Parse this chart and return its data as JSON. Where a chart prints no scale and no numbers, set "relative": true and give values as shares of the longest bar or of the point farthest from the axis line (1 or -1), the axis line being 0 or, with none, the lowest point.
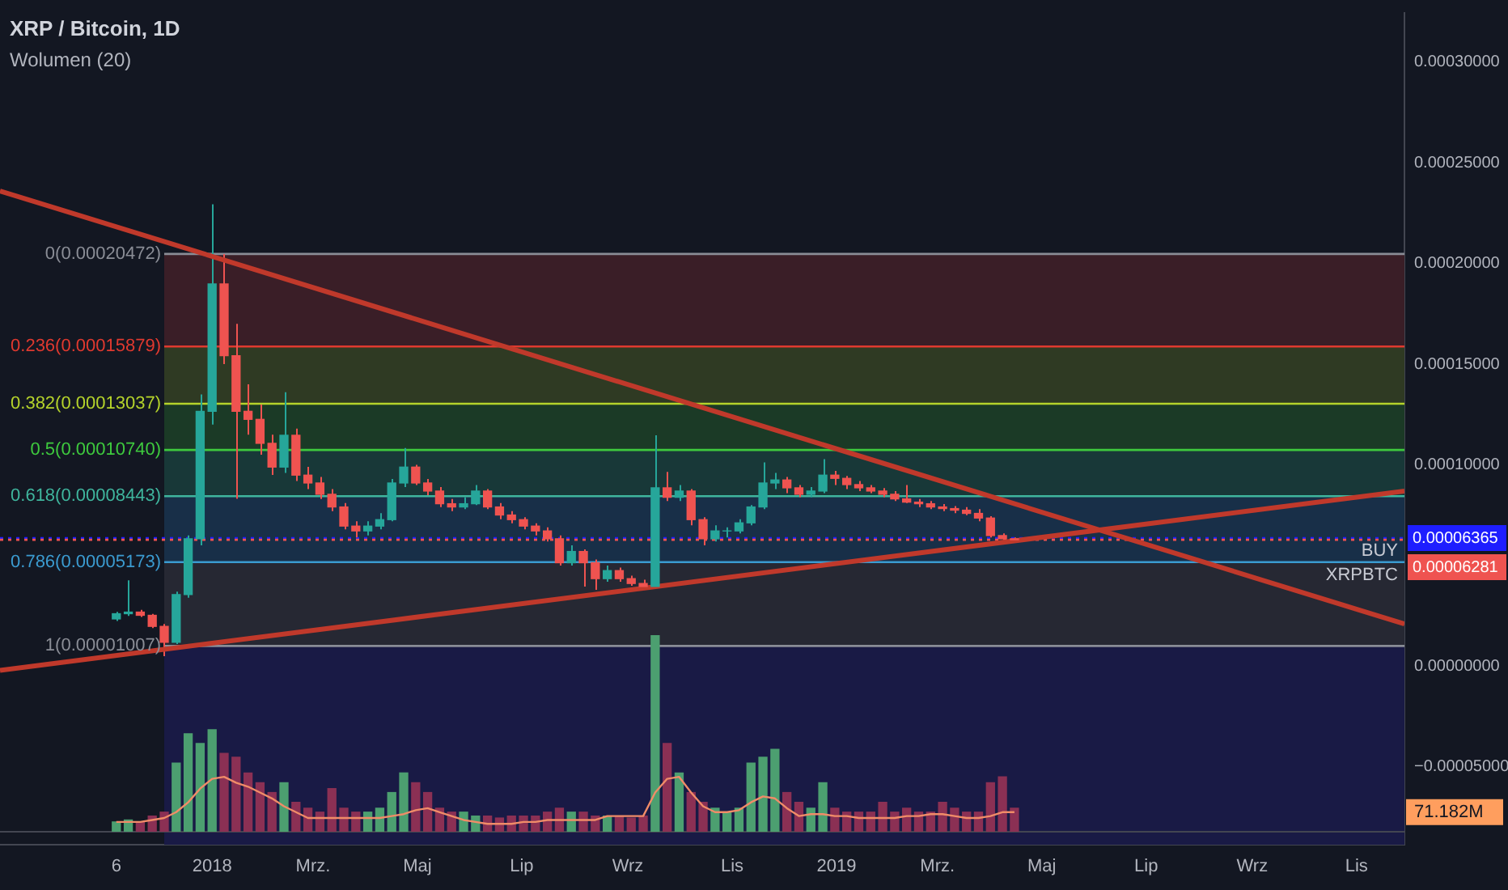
{
  "chart_data": [
    {
      "type": "candlestick",
      "title": "XRP / Bitcoin, 1D",
      "subtitle": "Wolumen (20)",
      "marker": "none",
      "xlim": [
        "2017-08-30",
        "2019-11-29"
      ],
      "xticks": [
        {
          "value": "2017-11-06",
          "label": "6"
        },
        {
          "value": "2018-01-01",
          "label": "2018"
        },
        {
          "value": "2018-03-01",
          "label": "Mrz."
        },
        {
          "value": "2018-05-01",
          "label": "Maj"
        },
        {
          "value": "2018-07-01",
          "label": "Lip"
        },
        {
          "value": "2018-09-01",
          "label": "Wrz"
        },
        {
          "value": "2018-11-01",
          "label": "Lis"
        },
        {
          "value": "2019-01-01",
          "label": "2019"
        },
        {
          "value": "2019-03-01",
          "label": "Mrz."
        },
        {
          "value": "2019-05-01",
          "label": "Maj"
        },
        {
          "value": "2019-07-01",
          "label": "Lip"
        },
        {
          "value": "2019-09-01",
          "label": "Wrz"
        },
        {
          "value": "2019-11-01",
          "label": "Lis"
        }
      ],
      "ylim": [
        -8.86e-05,
        0.0003244
      ],
      "yticks": [
        {
          "value": -5e-05,
          "label": "−0.00005000"
        },
        {
          "value": 0,
          "label": "0.00000000"
        },
        {
          "value": 0.0001,
          "label": "0.00010000"
        },
        {
          "value": 0.00015,
          "label": "0.00015000"
        },
        {
          "value": 0.0002,
          "label": "0.00020000"
        },
        {
          "value": 0.00025,
          "label": "0.00025000"
        },
        {
          "value": 0.0003,
          "label": "0.00030000"
        }
      ],
      "bands": [
        {
          "axis": "y",
          "from": 0.00015879,
          "to": 0.00020472,
          "color": "#3a1e27"
        },
        {
          "axis": "y",
          "from": 0.00013037,
          "to": 0.00015879,
          "color": "#2f3a23"
        },
        {
          "axis": "y",
          "from": 0.0001074,
          "to": 0.00013037,
          "color": "#1b3a26"
        },
        {
          "axis": "y",
          "from": 8.443e-05,
          "to": 0.0001074,
          "color": "#183838"
        },
        {
          "axis": "y",
          "from": 5.173e-05,
          "to": 8.443e-05,
          "color": "#182f48"
        },
        {
          "axis": "y",
          "from": 1.007e-05,
          "to": 5.173e-05,
          "color": "#262833"
        },
        {
          "axis": "y",
          "from": -8.86e-05,
          "to": 1.007e-05,
          "color": "#191a45"
        }
      ],
      "ref_lines": [
        {
          "axis": "y",
          "value": 0.00020472,
          "label": "0(0.00020472)",
          "color": "#8a8d96",
          "line_style": "solid"
        },
        {
          "axis": "y",
          "value": 0.00015879,
          "label": "0.236(0.00015879)",
          "color": "#e0392f",
          "line_style": "solid"
        },
        {
          "axis": "y",
          "value": 0.00013037,
          "label": "0.382(0.00013037)",
          "color": "#b5d32b",
          "line_style": "solid"
        },
        {
          "axis": "y",
          "value": 0.0001074,
          "label": "0.5(0.00010740)",
          "color": "#3ec93e",
          "line_style": "solid"
        },
        {
          "axis": "y",
          "value": 8.443e-05,
          "label": "0.618(0.00008443)",
          "color": "#3fb59d",
          "line_style": "solid"
        },
        {
          "axis": "y",
          "value": 5.173e-05,
          "label": "0.786(0.00005173)",
          "color": "#3b9bd0",
          "line_style": "solid"
        },
        {
          "axis": "y",
          "value": 1.007e-05,
          "label": "1(0.00001007)",
          "color": "#8a8d96",
          "line_style": "solid"
        },
        {
          "axis": "y",
          "value": 6.365e-05,
          "label": "0.00006365",
          "color": "#1e1eff",
          "line_style": "dotted"
        },
        {
          "axis": "y",
          "value": 6.281e-05,
          "label": "0.00006281",
          "color": "#ef5350",
          "line_style": "dotted"
        }
      ],
      "annotations": [
        {
          "text": "BUY",
          "y": 6.365e-05
        },
        {
          "text": "XRPBTC",
          "y": 6.281e-05
        }
      ],
      "series": [
        {
          "x": [
            "2017-11-06",
            "2017-11-13",
            "2017-11-20",
            "2017-11-27",
            "2017-12-04",
            "2017-12-11",
            "2017-12-18",
            "2017-12-25",
            "2018-01-01",
            "2018-01-08",
            "2018-01-15",
            "2018-01-22",
            "2018-01-29",
            "2018-02-05",
            "2018-02-12",
            "2018-02-19",
            "2018-02-26",
            "2018-03-05",
            "2018-03-12",
            "2018-03-19",
            "2018-03-26",
            "2018-04-02",
            "2018-04-09",
            "2018-04-16",
            "2018-04-23",
            "2018-04-30",
            "2018-05-07",
            "2018-05-14",
            "2018-05-21",
            "2018-05-28",
            "2018-06-04",
            "2018-06-11",
            "2018-06-18",
            "2018-06-25",
            "2018-07-02",
            "2018-07-09",
            "2018-07-16",
            "2018-07-23",
            "2018-07-30",
            "2018-08-06",
            "2018-08-13",
            "2018-08-20",
            "2018-08-27",
            "2018-09-03",
            "2018-09-10",
            "2018-09-17",
            "2018-09-24",
            "2018-10-01",
            "2018-10-08",
            "2018-10-15",
            "2018-10-22",
            "2018-10-29",
            "2018-11-05",
            "2018-11-12",
            "2018-11-19",
            "2018-11-26",
            "2018-12-03",
            "2018-12-10",
            "2018-12-17",
            "2018-12-24",
            "2018-12-31",
            "2019-01-07",
            "2019-01-14",
            "2019-01-21",
            "2019-01-28",
            "2019-02-04",
            "2019-02-11",
            "2019-02-18",
            "2019-02-25",
            "2019-03-04",
            "2019-03-11",
            "2019-03-18",
            "2019-03-25",
            "2019-04-01",
            "2019-04-08",
            "2019-04-15"
          ],
          "ohlc": [
            [
              2.35e-05,
              2.7e-05,
              2.25e-05,
              2.61e-05
            ],
            [
              2.61e-05,
              4.27e-05,
              2.5e-05,
              2.69e-05
            ],
            [
              2.69e-05,
              2.8e-05,
              2.45e-05,
              2.53e-05
            ],
            [
              2.53e-05,
              2.6e-05,
              1.9e-05,
              1.98e-05
            ],
            [
              1.98e-05,
              2.1e-05,
              5e-06,
              1.19e-05
            ],
            [
              1.19e-05,
              3.7e-05,
              1.1e-05,
              3.56e-05
            ],
            [
              3.56e-05,
              6.5e-05,
              3.4e-05,
              6.33e-05
            ],
            [
              6.33e-05,
              0.000135,
              6e-05,
              0.0001266
            ],
            [
              0.0001266,
              0.0002294,
              0.00012,
              0.0001898
            ],
            [
              0.0001898,
              0.0002047,
              0.00015,
              0.0001542
            ],
            [
              0.0001542,
              0.00017,
              8.31e-05,
              0.0001266
            ],
            [
              0.0001266,
              0.00014,
              0.000115,
              0.0001226
            ],
            [
              0.0001226,
              0.00013,
              0.000105,
              0.0001107
            ],
            [
              0.0001107,
              0.000115,
              9.5e-05,
              9.89e-05
            ],
            [
              9.89e-05,
              0.0001361,
              9.6e-05,
              0.0001147
            ],
            [
              0.0001147,
              0.000118,
              9.2e-05,
              9.49e-05
            ],
            [
              9.49e-05,
              9.9e-05,
              8.8e-05,
              9.1e-05
            ],
            [
              9.1e-05,
              9.4e-05,
              8.3e-05,
              8.54e-05
            ],
            [
              8.54e-05,
              8.8e-05,
              7.7e-05,
              7.91e-05
            ],
            [
              7.91e-05,
              8.1e-05,
              6.8e-05,
              6.96e-05
            ],
            [
              6.96e-05,
              7.2e-05,
              6.4e-05,
              6.72e-05
            ],
            [
              6.72e-05,
              7.2e-05,
              6.5e-05,
              6.96e-05
            ],
            [
              6.96e-05,
              7.6e-05,
              6.8e-05,
              7.28e-05
            ],
            [
              7.28e-05,
              9.3e-05,
              7.2e-05,
              9.1e-05
            ],
            [
              9.1e-05,
              0.0001084,
              8.9e-05,
              9.89e-05
            ],
            [
              9.89e-05,
              0.0001,
              9e-05,
              9.1e-05
            ],
            [
              9.1e-05,
              9.3e-05,
              8.5e-05,
              8.7e-05
            ],
            [
              8.7e-05,
              8.9e-05,
              7.9e-05,
              8.07e-05
            ],
            [
              8.07e-05,
              8.3e-05,
              7.7e-05,
              7.91e-05
            ],
            [
              7.91e-05,
              8.4e-05,
              7.8e-05,
              8.07e-05
            ],
            [
              8.07e-05,
              9e-05,
              8e-05,
              8.7e-05
            ],
            [
              8.7e-05,
              8.8e-05,
              7.8e-05,
              7.91e-05
            ],
            [
              7.91e-05,
              8.1e-05,
              7.3e-05,
              7.51e-05
            ],
            [
              7.51e-05,
              7.7e-05,
              7.1e-05,
              7.28e-05
            ],
            [
              7.28e-05,
              7.4e-05,
              6.8e-05,
              6.96e-05
            ],
            [
              6.96e-05,
              7.1e-05,
              6.5e-05,
              6.72e-05
            ],
            [
              6.72e-05,
              6.9e-05,
              6.2e-05,
              6.33e-05
            ],
            [
              6.33e-05,
              6.5e-05,
              5e-05,
              5.14e-05
            ],
            [
              5.14e-05,
              6e-05,
              5e-05,
              5.7e-05
            ],
            [
              5.7e-05,
              5.8e-05,
              3.96e-05,
              5.14e-05
            ],
            [
              5.14e-05,
              5.3e-05,
              3.8e-05,
              4.35e-05
            ],
            [
              4.35e-05,
              5e-05,
              4.2e-05,
              4.75e-05
            ],
            [
              4.75e-05,
              4.9e-05,
              4.2e-05,
              4.35e-05
            ],
            [
              4.35e-05,
              4.5e-05,
              4e-05,
              4.11e-05
            ],
            [
              4.11e-05,
              4.3e-05,
              3.8e-05,
              3.96e-05
            ],
            [
              3.96e-05,
              0.0001147,
              3.9e-05,
              8.86e-05
            ],
            [
              8.86e-05,
              9.65e-05,
              8.2e-05,
              8.39e-05
            ],
            [
              8.39e-05,
              9e-05,
              8.2e-05,
              8.7e-05
            ],
            [
              8.7e-05,
              8.8e-05,
              7e-05,
              7.28e-05
            ],
            [
              7.28e-05,
              7.4e-05,
              6e-05,
              6.33e-05
            ],
            [
              6.33e-05,
              7e-05,
              6.2e-05,
              6.72e-05
            ],
            [
              6.72e-05,
              6.9e-05,
              6.4e-05,
              6.72e-05
            ],
            [
              6.72e-05,
              7.3e-05,
              6.6e-05,
              7.12e-05
            ],
            [
              7.12e-05,
              8e-05,
              7e-05,
              7.91e-05
            ],
            [
              7.91e-05,
              0.0001012,
              7.8e-05,
              9.1e-05
            ],
            [
              9.1e-05,
              9.6e-05,
              8.8e-05,
              9.25e-05
            ],
            [
              9.25e-05,
              9.4e-05,
              8.6e-05,
              8.86e-05
            ],
            [
              8.86e-05,
              9e-05,
              8.4e-05,
              8.54e-05
            ],
            [
              8.54e-05,
              8.9e-05,
              8.4e-05,
              8.7e-05
            ],
            [
              8.7e-05,
              0.0001028,
              8.6e-05,
              9.49e-05
            ],
            [
              9.49e-05,
              9.7e-05,
              9e-05,
              9.33e-05
            ],
            [
              9.33e-05,
              9.45e-05,
              8.8e-05,
              9.02e-05
            ],
            [
              9.02e-05,
              9.2e-05,
              8.7e-05,
              8.86e-05
            ],
            [
              8.86e-05,
              9e-05,
              8.6e-05,
              8.7e-05
            ],
            [
              8.7e-05,
              8.85e-05,
              8.4e-05,
              8.54e-05
            ],
            [
              8.54e-05,
              8.7e-05,
              8.2e-05,
              8.31e-05
            ],
            [
              8.31e-05,
              9e-05,
              8.1e-05,
              8.15e-05
            ],
            [
              8.15e-05,
              8.3e-05,
              7.9e-05,
              8.07e-05
            ],
            [
              8.07e-05,
              8.2e-05,
              7.8e-05,
              7.91e-05
            ],
            [
              7.91e-05,
              8.05e-05,
              7.7e-05,
              7.83e-05
            ],
            [
              7.83e-05,
              7.95e-05,
              7.6e-05,
              7.75e-05
            ],
            [
              7.75e-05,
              7.9e-05,
              7.5e-05,
              7.59e-05
            ],
            [
              7.59e-05,
              7.8e-05,
              7.2e-05,
              7.36e-05
            ],
            [
              7.36e-05,
              7.45e-05,
              6.4e-05,
              6.49e-05
            ],
            [
              6.49e-05,
              6.6e-05,
              6.2e-05,
              6.33e-05
            ],
            [
              6.33e-05,
              6.4e-05,
              6.15e-05,
              6.281e-05
            ]
          ],
          "colors": [
            "#26a69a",
            "#26a69a",
            "#ef5350",
            "#ef5350",
            "#ef5350",
            "#26a69a",
            "#26a69a",
            "#26a69a",
            "#26a69a",
            "#ef5350",
            "#ef5350",
            "#ef5350",
            "#ef5350",
            "#ef5350",
            "#26a69a",
            "#ef5350",
            "#ef5350",
            "#ef5350",
            "#ef5350",
            "#ef5350",
            "#ef5350",
            "#26a69a",
            "#26a69a",
            "#26a69a",
            "#26a69a",
            "#ef5350",
            "#ef5350",
            "#ef5350",
            "#ef5350",
            "#26a69a",
            "#26a69a",
            "#ef5350",
            "#ef5350",
            "#ef5350",
            "#ef5350",
            "#ef5350",
            "#ef5350",
            "#ef5350",
            "#26a69a",
            "#ef5350",
            "#ef5350",
            "#26a69a",
            "#ef5350",
            "#ef5350",
            "#ef5350",
            "#26a69a",
            "#ef5350",
            "#26a69a",
            "#ef5350",
            "#ef5350",
            "#26a69a",
            "#26a69a",
            "#26a69a",
            "#26a69a",
            "#26a69a",
            "#26a69a",
            "#ef5350",
            "#ef5350",
            "#26a69a",
            "#26a69a",
            "#ef5350",
            "#ef5350",
            "#ef5350",
            "#ef5350",
            "#ef5350",
            "#ef5350",
            "#ef5350",
            "#ef5350",
            "#ef5350",
            "#ef5350",
            "#ef5350",
            "#ef5350",
            "#ef5350",
            "#ef5350",
            "#ef5350",
            "#ef5350"
          ]
        },
        {
          "type": "line",
          "x": [
            "2017-08-30",
            "2019-11-29"
          ],
          "values": [
            0.000236,
            2.1e-05
          ],
          "color": "#c0392b"
        },
        {
          "type": "line",
          "x": [
            "2017-08-30",
            "2019-11-29"
          ],
          "values": [
            -2e-06,
            8.7e-05
          ],
          "color": "#c0392b"
        }
      ]
    },
    {
      "type": "bar",
      "relative": true,
      "tick_labels": false,
      "xlim": [
        "2017-08-30",
        "2019-11-29"
      ],
      "marker": "none",
      "annotations": [
        "71.182M"
      ],
      "series": [
        {
          "x": [
            "2017-11-06",
            "2017-11-13",
            "2017-11-20",
            "2017-11-27",
            "2017-12-04",
            "2017-12-11",
            "2017-12-18",
            "2017-12-25",
            "2018-01-01",
            "2018-01-08",
            "2018-01-15",
            "2018-01-22",
            "2018-01-29",
            "2018-02-05",
            "2018-02-12",
            "2018-02-19",
            "2018-02-26",
            "2018-03-05",
            "2018-03-12",
            "2018-03-19",
            "2018-03-26",
            "2018-04-02",
            "2018-04-09",
            "2018-04-16",
            "2018-04-23",
            "2018-04-30",
            "2018-05-07",
            "2018-05-14",
            "2018-05-21",
            "2018-05-28",
            "2018-06-04",
            "2018-06-11",
            "2018-06-18",
            "2018-06-25",
            "2018-07-02",
            "2018-07-09",
            "2018-07-16",
            "2018-07-23",
            "2018-07-30",
            "2018-08-06",
            "2018-08-13",
            "2018-08-20",
            "2018-08-27",
            "2018-09-03",
            "2018-09-10",
            "2018-09-17",
            "2018-09-24",
            "2018-10-01",
            "2018-10-08",
            "2018-10-15",
            "2018-10-22",
            "2018-10-29",
            "2018-11-05",
            "2018-11-12",
            "2018-11-19",
            "2018-11-26",
            "2018-12-03",
            "2018-12-10",
            "2018-12-17",
            "2018-12-24",
            "2018-12-31",
            "2019-01-07",
            "2019-01-14",
            "2019-01-21",
            "2019-01-28",
            "2019-02-04",
            "2019-02-11",
            "2019-02-18",
            "2019-02-25",
            "2019-03-04",
            "2019-03-11",
            "2019-03-18",
            "2019-03-25",
            "2019-04-01",
            "2019-04-08",
            "2019-04-15"
          ],
          "values": [
            0.05,
            0.06,
            0.05,
            0.08,
            0.1,
            0.35,
            0.5,
            0.45,
            0.52,
            0.4,
            0.38,
            0.3,
            0.25,
            0.2,
            0.25,
            0.15,
            0.12,
            0.1,
            0.22,
            0.12,
            0.1,
            0.1,
            0.12,
            0.2,
            0.3,
            0.25,
            0.2,
            0.12,
            0.1,
            0.1,
            0.08,
            0.08,
            0.07,
            0.08,
            0.08,
            0.08,
            0.1,
            0.12,
            0.1,
            0.1,
            0.08,
            0.08,
            0.08,
            0.07,
            0.08,
            1,
            0.45,
            0.3,
            0.2,
            0.15,
            0.12,
            0.1,
            0.12,
            0.35,
            0.38,
            0.42,
            0.2,
            0.15,
            0.12,
            0.25,
            0.12,
            0.1,
            0.1,
            0.1,
            0.15,
            0.1,
            0.12,
            0.1,
            0.1,
            0.15,
            0.12,
            0.1,
            0.1,
            0.25,
            0.28,
            0.12
          ],
          "colors": [
            "#4c9f70",
            "#4c9f70",
            "#8b3054",
            "#8b3054",
            "#8b3054",
            "#4c9f70",
            "#4c9f70",
            "#4c9f70",
            "#4c9f70",
            "#8b3054",
            "#8b3054",
            "#8b3054",
            "#8b3054",
            "#8b3054",
            "#4c9f70",
            "#8b3054",
            "#8b3054",
            "#8b3054",
            "#8b3054",
            "#8b3054",
            "#8b3054",
            "#4c9f70",
            "#4c9f70",
            "#4c9f70",
            "#4c9f70",
            "#8b3054",
            "#8b3054",
            "#8b3054",
            "#8b3054",
            "#4c9f70",
            "#4c9f70",
            "#8b3054",
            "#8b3054",
            "#8b3054",
            "#8b3054",
            "#8b3054",
            "#8b3054",
            "#8b3054",
            "#4c9f70",
            "#8b3054",
            "#8b3054",
            "#4c9f70",
            "#8b3054",
            "#8b3054",
            "#8b3054",
            "#4c9f70",
            "#8b3054",
            "#4c9f70",
            "#8b3054",
            "#8b3054",
            "#4c9f70",
            "#4c9f70",
            "#4c9f70",
            "#4c9f70",
            "#4c9f70",
            "#4c9f70",
            "#8b3054",
            "#8b3054",
            "#4c9f70",
            "#4c9f70",
            "#8b3054",
            "#8b3054",
            "#8b3054",
            "#8b3054",
            "#8b3054",
            "#8b3054",
            "#8b3054",
            "#8b3054",
            "#8b3054",
            "#8b3054",
            "#8b3054",
            "#8b3054",
            "#8b3054",
            "#8b3054",
            "#8b3054",
            "#8b3054"
          ]
        },
        {
          "type": "line",
          "color": "#f08c68",
          "x": [
            "2017-11-06",
            "2017-11-13",
            "2017-11-20",
            "2017-11-27",
            "2017-12-04",
            "2017-12-11",
            "2017-12-18",
            "2017-12-25",
            "2018-01-01",
            "2018-01-08",
            "2018-01-15",
            "2018-01-22",
            "2018-01-29",
            "2018-02-05",
            "2018-02-12",
            "2018-02-19",
            "2018-02-26",
            "2018-03-05",
            "2018-03-12",
            "2018-03-19",
            "2018-03-26",
            "2018-04-02",
            "2018-04-09",
            "2018-04-16",
            "2018-04-23",
            "2018-04-30",
            "2018-05-07",
            "2018-05-14",
            "2018-05-21",
            "2018-05-28",
            "2018-06-04",
            "2018-06-11",
            "2018-06-18",
            "2018-06-25",
            "2018-07-02",
            "2018-07-09",
            "2018-07-16",
            "2018-07-23",
            "2018-07-30",
            "2018-08-06",
            "2018-08-13",
            "2018-08-20",
            "2018-08-27",
            "2018-09-03",
            "2018-09-10",
            "2018-09-17",
            "2018-09-24",
            "2018-10-01",
            "2018-10-08",
            "2018-10-15",
            "2018-10-22",
            "2018-10-29",
            "2018-11-05",
            "2018-11-12",
            "2018-11-19",
            "2018-11-26",
            "2018-12-03",
            "2018-12-10",
            "2018-12-17",
            "2018-12-24",
            "2018-12-31",
            "2019-01-07",
            "2019-01-14",
            "2019-01-21",
            "2019-01-28",
            "2019-02-04",
            "2019-02-11",
            "2019-02-18",
            "2019-02-25",
            "2019-03-04",
            "2019-03-11",
            "2019-03-18",
            "2019-03-25",
            "2019-04-01",
            "2019-04-08",
            "2019-04-15"
          ],
          "values": [
            0.05,
            0.05,
            0.05,
            0.06,
            0.07,
            0.1,
            0.15,
            0.22,
            0.27,
            0.28,
            0.25,
            0.23,
            0.2,
            0.17,
            0.13,
            0.1,
            0.07,
            0.07,
            0.07,
            0.07,
            0.07,
            0.07,
            0.07,
            0.08,
            0.09,
            0.11,
            0.12,
            0.1,
            0.08,
            0.06,
            0.05,
            0.04,
            0.04,
            0.04,
            0.05,
            0.05,
            0.06,
            0.06,
            0.06,
            0.06,
            0.06,
            0.08,
            0.08,
            0.08,
            0.08,
            0.2,
            0.27,
            0.28,
            0.2,
            0.13,
            0.1,
            0.1,
            0.11,
            0.15,
            0.18,
            0.17,
            0.12,
            0.08,
            0.09,
            0.09,
            0.08,
            0.08,
            0.07,
            0.07,
            0.07,
            0.07,
            0.08,
            0.08,
            0.09,
            0.09,
            0.08,
            0.07,
            0.07,
            0.08,
            0.1,
            0.1
          ]
        }
      ]
    }
  ]
}
